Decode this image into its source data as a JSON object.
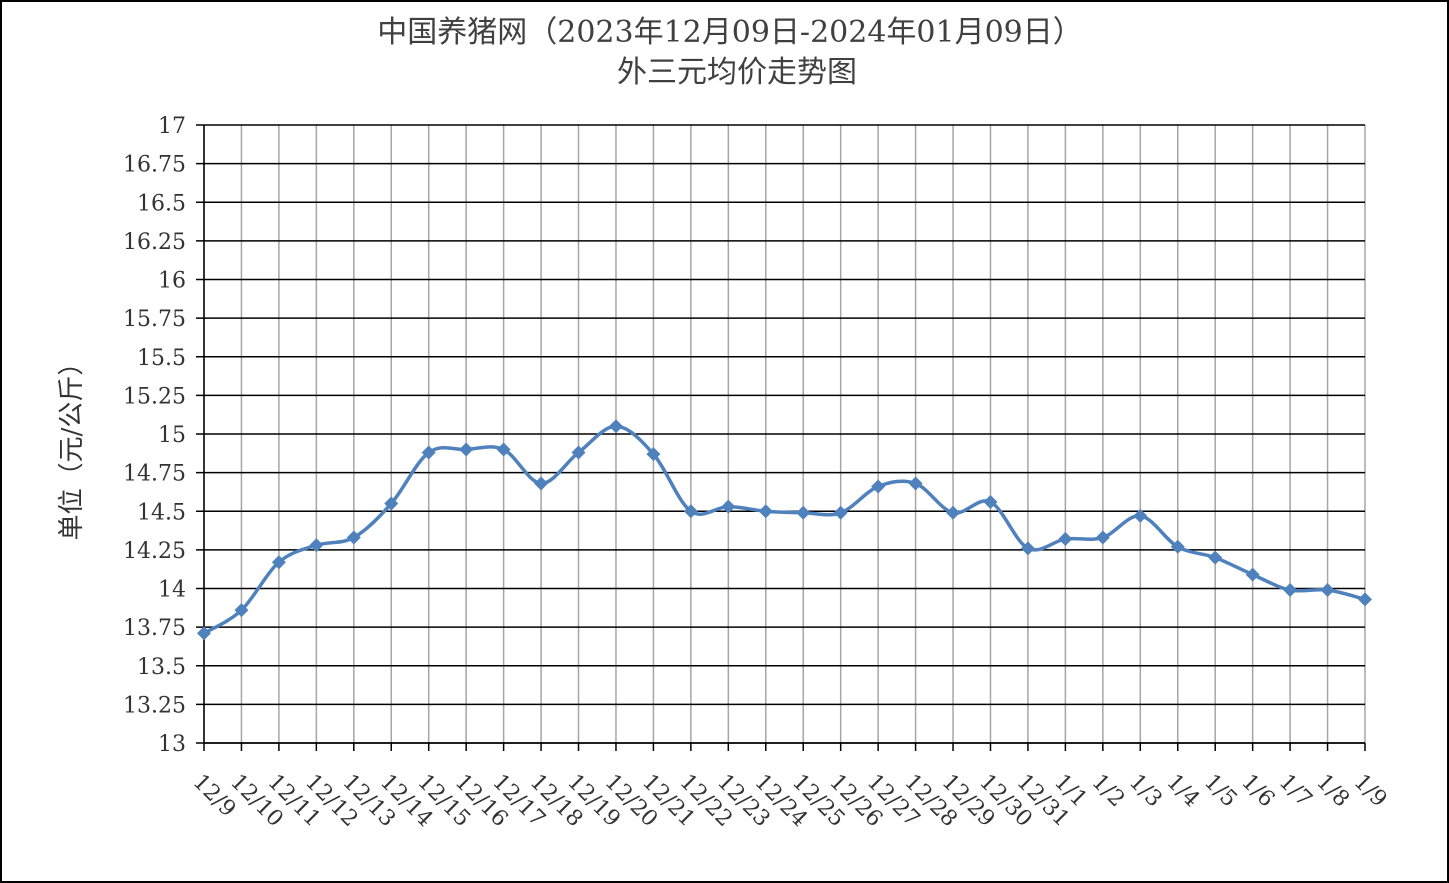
{
  "chart_data": {
    "type": "line",
    "title": "中国养猪网（2023年12月09日-2024年01月09日）",
    "subtitle": "外三元均价走势图",
    "y_label": "单位（元/公斤）",
    "categories": [
      "12/9",
      "12/10",
      "12/11",
      "12/12",
      "12/13",
      "12/14",
      "12/15",
      "12/16",
      "12/17",
      "12/18",
      "12/19",
      "12/20",
      "12/21",
      "12/22",
      "12/23",
      "12/24",
      "12/25",
      "12/26",
      "12/27",
      "12/28",
      "12/29",
      "12/30",
      "12/31",
      "1/1",
      "1/2",
      "1/3",
      "1/4",
      "1/5",
      "1/6",
      "1/7",
      "1/8",
      "1/9"
    ],
    "series": [
      {
        "name": "外三元均价",
        "color": "#4f81bd",
        "values": [
          13.71,
          13.86,
          14.17,
          14.28,
          14.33,
          14.55,
          14.88,
          14.9,
          14.9,
          14.68,
          14.88,
          15.05,
          14.87,
          14.5,
          14.53,
          14.5,
          14.49,
          14.49,
          14.66,
          14.68,
          14.49,
          14.56,
          14.26,
          14.32,
          14.33,
          14.47,
          14.27,
          14.2,
          14.09,
          13.99,
          13.99,
          13.93
        ]
      }
    ],
    "ylim": [
      13,
      17
    ],
    "yticks": [
      13,
      13.25,
      13.5,
      13.75,
      14,
      14.25,
      14.5,
      14.75,
      15,
      15.25,
      15.5,
      15.75,
      16,
      16.25,
      16.5,
      16.75,
      17
    ],
    "grid": true
  }
}
